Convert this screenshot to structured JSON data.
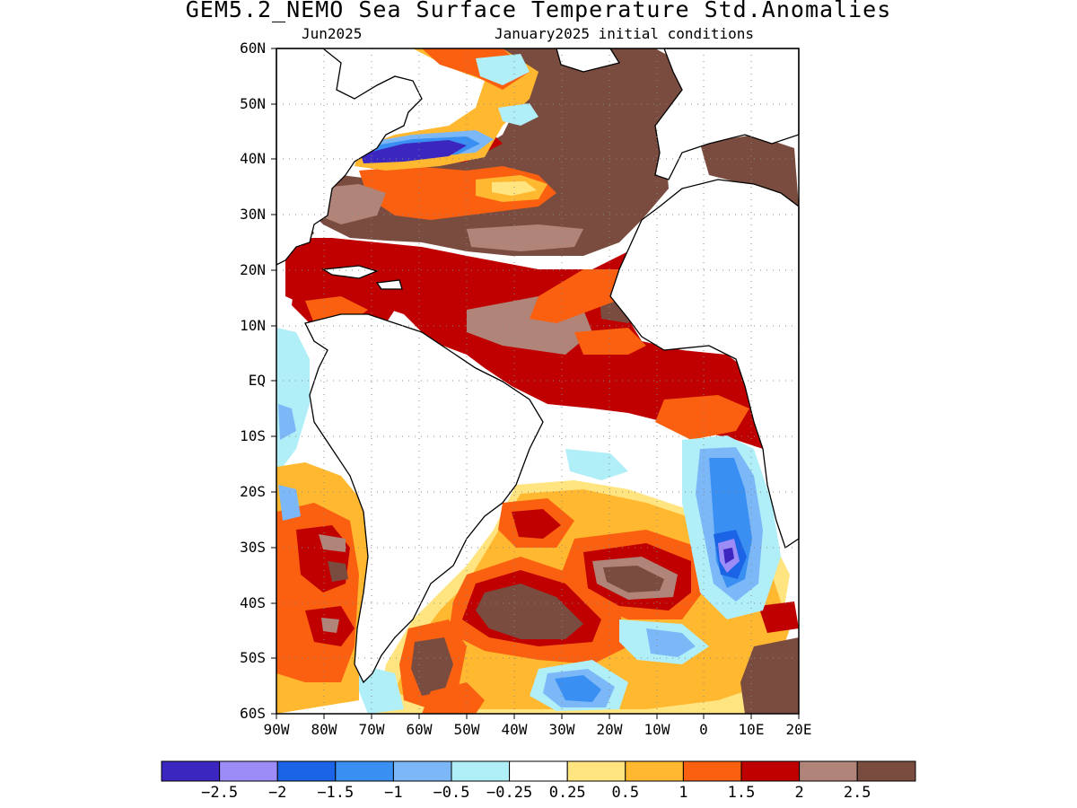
{
  "title": "GEM5.2_NEMO Sea Surface Temperature Std.Anomalies",
  "subtitle_left": "Jun2025",
  "subtitle_right": "January2025 initial conditions",
  "map": {
    "lat_range": [
      -60,
      60
    ],
    "lon_range": [
      -90,
      20
    ],
    "lat_labels": [
      "60N",
      "50N",
      "40N",
      "30N",
      "20N",
      "10N",
      "EQ",
      "10S",
      "20S",
      "30S",
      "40S",
      "50S",
      "60S"
    ],
    "lon_labels": [
      "90W",
      "80W",
      "70W",
      "60W",
      "50W",
      "40W",
      "30W",
      "20W",
      "10W",
      "0",
      "10E",
      "20E"
    ],
    "grid": "dotted",
    "coastline_color": "#000000"
  },
  "colorbar": {
    "colors": [
      "#3c26c0",
      "#9c8cf8",
      "#1c64e6",
      "#3a90f2",
      "#7cb8f8",
      "#b0eef8",
      "#ffffff",
      "#ffe480",
      "#ffb830",
      "#fa6010",
      "#c00000",
      "#b08478",
      "#7a4c40"
    ],
    "labels": [
      "-2.5",
      "-2",
      "-1.5",
      "-1",
      "-0.5",
      "-0.25",
      "0.25",
      "0.5",
      "1",
      "1.5",
      "2",
      "2.5"
    ]
  }
}
